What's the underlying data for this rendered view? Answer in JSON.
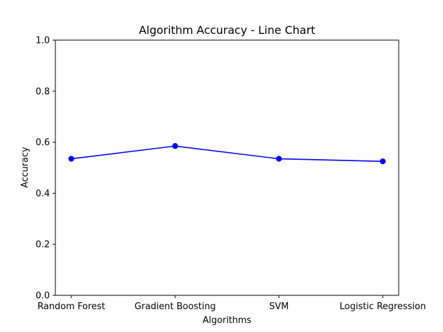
{
  "chart_data": {
    "type": "line",
    "title": "Algorithm Accuracy - Line Chart",
    "xlabel": "Algorithms",
    "ylabel": "Accuracy",
    "categories": [
      "Random Forest",
      "Gradient Boosting",
      "SVM",
      "Logistic Regression"
    ],
    "series": [
      {
        "values": [
          0.535,
          0.585,
          0.535,
          0.525
        ]
      }
    ],
    "ylim": [
      0,
      1
    ],
    "yticks": [
      "0.0",
      "0.2",
      "0.4",
      "0.6",
      "0.8",
      "1.0"
    ],
    "grid": false,
    "colors": {
      "line": "#0000ff",
      "marker": "#0000ff"
    }
  }
}
